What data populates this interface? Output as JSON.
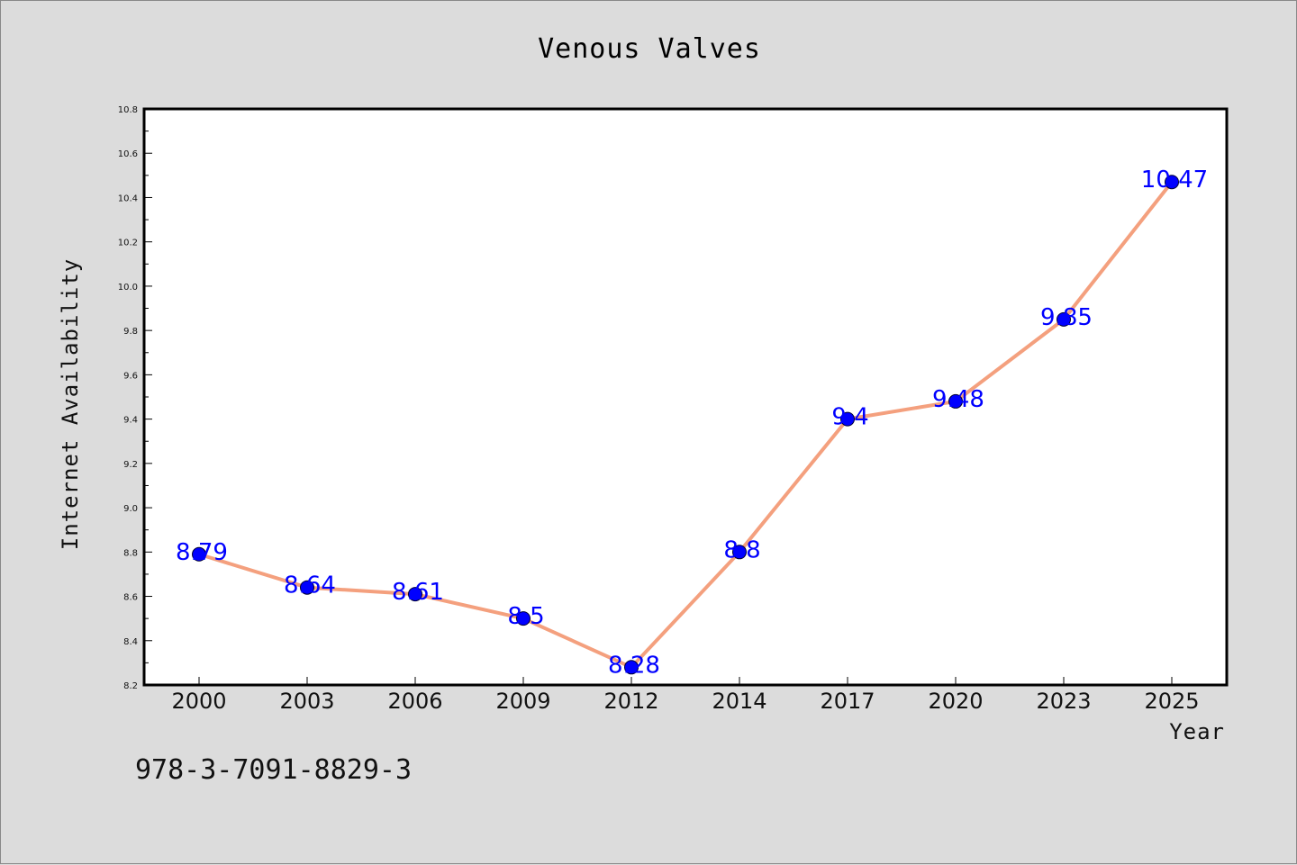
{
  "chart_data": {
    "type": "line",
    "title": "Venous Valves",
    "xlabel": "Year",
    "ylabel": "Internet Availability",
    "categories": [
      "2000",
      "2003",
      "2006",
      "2009",
      "2012",
      "2014",
      "2017",
      "2020",
      "2023",
      "2025"
    ],
    "series": [
      {
        "values": [
          8.79,
          8.64,
          8.61,
          8.5,
          8.28,
          8.8,
          9.4,
          9.48,
          9.85,
          10.47
        ],
        "value_labels": [
          "8.79",
          "8.64",
          "8.61",
          "8.5",
          "8.28",
          "8.8",
          "9.4",
          "9.48",
          "9.85",
          "10.47"
        ]
      }
    ],
    "ylim": [
      8.2,
      10.8
    ],
    "y_ticks": [
      "8.2",
      "8.4",
      "8.6",
      "8.8",
      "9.0",
      "9.2",
      "9.4",
      "9.6",
      "9.8",
      "10.0",
      "10.2",
      "10.4",
      "10.6",
      "10.8"
    ],
    "grid": false,
    "legend": "none",
    "colors": {
      "line": "#f4a07e",
      "marker": "#0000ff",
      "data_label": "#0000ff",
      "plot_background": "#ffffff",
      "page_background": "#dcdcdc"
    }
  },
  "footnote": "978-3-7091-8829-3"
}
